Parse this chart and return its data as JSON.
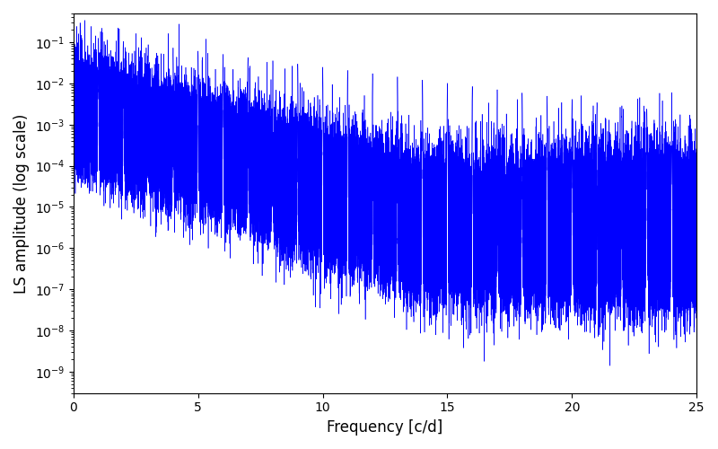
{
  "title": "",
  "xlabel": "Frequency [c/d]",
  "ylabel": "LS amplitude (log scale)",
  "xlim": [
    0,
    25
  ],
  "ylim": [
    3e-10,
    0.5
  ],
  "line_color": "blue",
  "line_width": 0.4,
  "background_color": "white",
  "freq_max": 25.0,
  "n_points": 100000,
  "seed": 12345,
  "figsize": [
    8.0,
    5.0
  ],
  "dpi": 100
}
